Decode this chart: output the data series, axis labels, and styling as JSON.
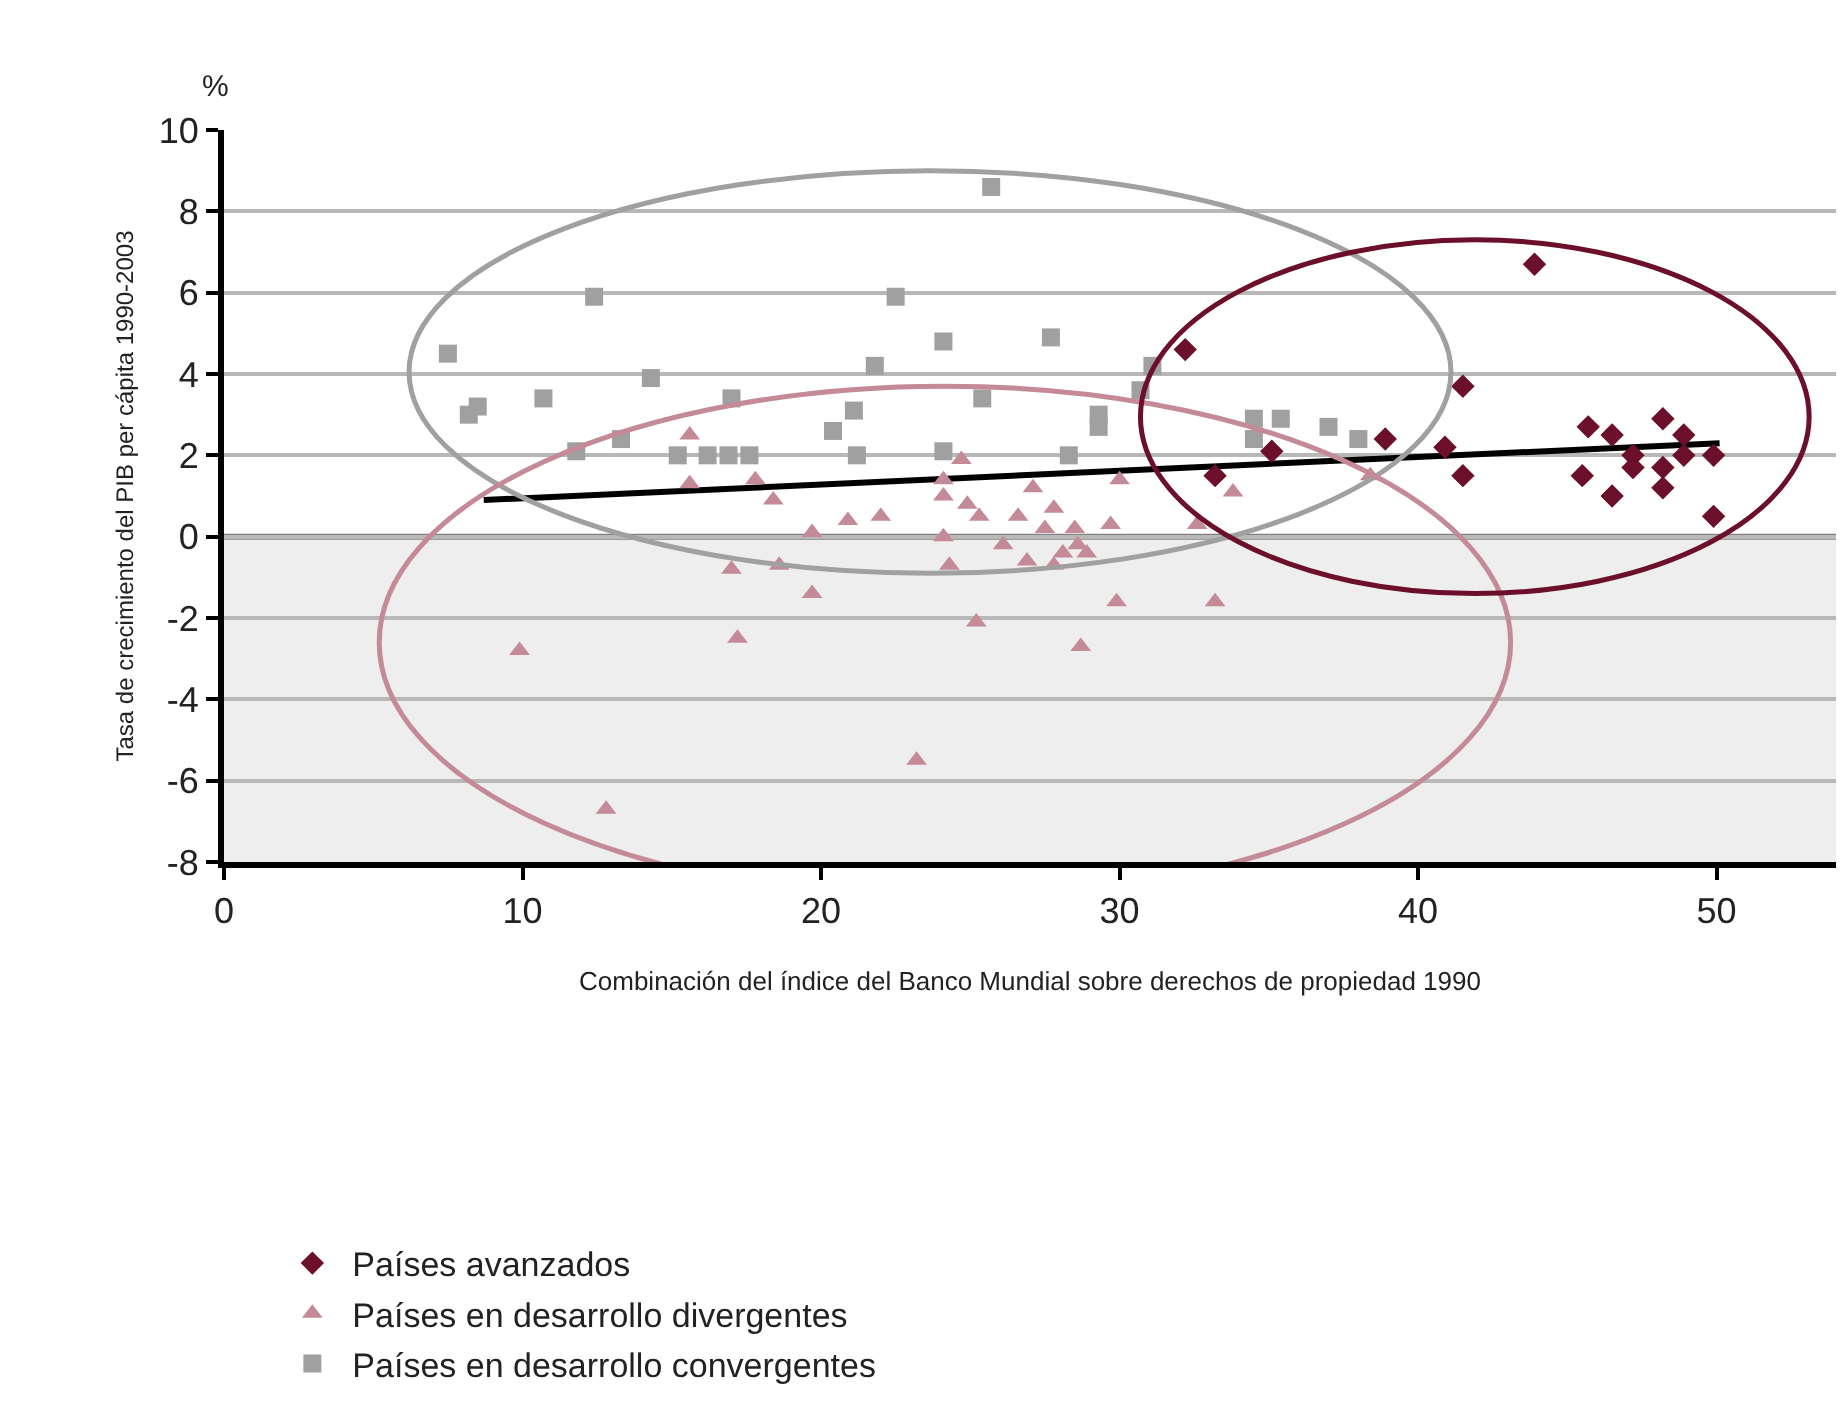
{
  "chart_data": {
    "type": "scatter",
    "xlabel": "Combinación del índice del Banco Mundial sobre derechos de propiedad 1990",
    "ylabel": "Tasa de crecimiento del PIB per cápita 1990-2003",
    "annotations": [
      "%"
    ],
    "xlim": [
      0,
      54
    ],
    "xticks": [
      0,
      10,
      20,
      30,
      40,
      50
    ],
    "ylim": [
      -8,
      10
    ],
    "yticks": [
      -8,
      -6,
      -4,
      -2,
      0,
      2,
      4,
      6,
      8,
      10
    ],
    "grid": "y",
    "legend": "bottom",
    "bands": [
      {
        "axis": "y",
        "from": -8,
        "to": 0,
        "color": "#eeeeee"
      }
    ],
    "ref_lines": [
      {
        "axis": "y",
        "value": 0,
        "color": "#808080"
      }
    ],
    "series": [
      {
        "name": "Países avanzados",
        "color": "#6b0f2a",
        "marker": "diamond",
        "x": [
          32.2,
          35.1,
          33.2,
          38.9,
          40.9,
          41.5,
          41.5,
          43.9,
          45.7,
          45.5,
          46.5,
          46.5,
          47.2,
          47.2,
          48.2,
          48.2,
          48.2,
          48.9,
          48.9,
          49.9,
          49.9
        ],
        "values": [
          4.6,
          2.1,
          1.5,
          2.4,
          2.2,
          3.7,
          1.5,
          6.7,
          2.7,
          1.5,
          2.5,
          1.0,
          2.0,
          1.7,
          2.9,
          1.7,
          1.2,
          2.5,
          2.0,
          2.0,
          0.5
        ]
      },
      {
        "name": "Países en desarrollo divergentes",
        "color": "#c48a98",
        "marker": "triangle",
        "x": [
          15.6,
          15.6,
          17.8,
          18.4,
          19.7,
          17.0,
          18.6,
          19.7,
          17.2,
          9.9,
          12.8,
          20.9,
          22.0,
          24.7,
          24.1,
          24.1,
          24.9,
          25.3,
          24.1,
          24.3,
          26.1,
          27.1,
          26.6,
          27.8,
          27.5,
          28.5,
          28.6,
          28.1,
          26.9,
          27.8,
          28.9,
          29.7,
          30.0,
          25.2,
          28.7,
          29.9,
          33.2,
          32.6,
          33.8,
          23.2,
          38.4
        ],
        "values": [
          2.5,
          1.3,
          1.4,
          0.9,
          0.1,
          -0.8,
          -0.7,
          -1.4,
          -2.5,
          -2.8,
          -6.7,
          0.4,
          0.5,
          1.9,
          1.4,
          1.0,
          0.8,
          0.5,
          0.0,
          -0.7,
          -0.2,
          1.2,
          0.5,
          0.7,
          0.2,
          0.2,
          -0.2,
          -0.4,
          -0.6,
          -0.7,
          -0.4,
          0.3,
          1.4,
          -2.1,
          -2.7,
          -1.6,
          -1.6,
          0.3,
          1.1,
          -5.5,
          1.5
        ]
      },
      {
        "name": "Países en desarrollo convergentes",
        "color": "#a0a0a0",
        "marker": "square",
        "x": [
          7.5,
          8.2,
          8.5,
          10.7,
          12.4,
          11.8,
          13.3,
          14.3,
          15.2,
          16.2,
          16.9,
          17.6,
          17.0,
          20.4,
          25.7,
          22.5,
          24.1,
          27.7,
          21.8,
          21.1,
          21.2,
          25.4,
          24.1,
          29.3,
          29.3,
          28.3,
          31.1,
          30.7,
          34.5,
          35.4,
          34.5,
          37.0,
          38.0
        ],
        "values": [
          4.5,
          3.0,
          3.2,
          3.4,
          5.9,
          2.1,
          2.4,
          3.9,
          2.0,
          2.0,
          2.0,
          2.0,
          3.4,
          2.6,
          8.6,
          5.9,
          4.8,
          4.9,
          4.2,
          3.1,
          2.0,
          3.4,
          2.1,
          3.0,
          2.7,
          2.0,
          4.2,
          3.6,
          2.9,
          2.9,
          2.4,
          2.7,
          2.4
        ]
      },
      {
        "type": "line",
        "color": "#000000",
        "marker": "none",
        "x": [
          8.7,
          50.1
        ],
        "values": [
          0.9,
          2.3
        ]
      }
    ]
  }
}
